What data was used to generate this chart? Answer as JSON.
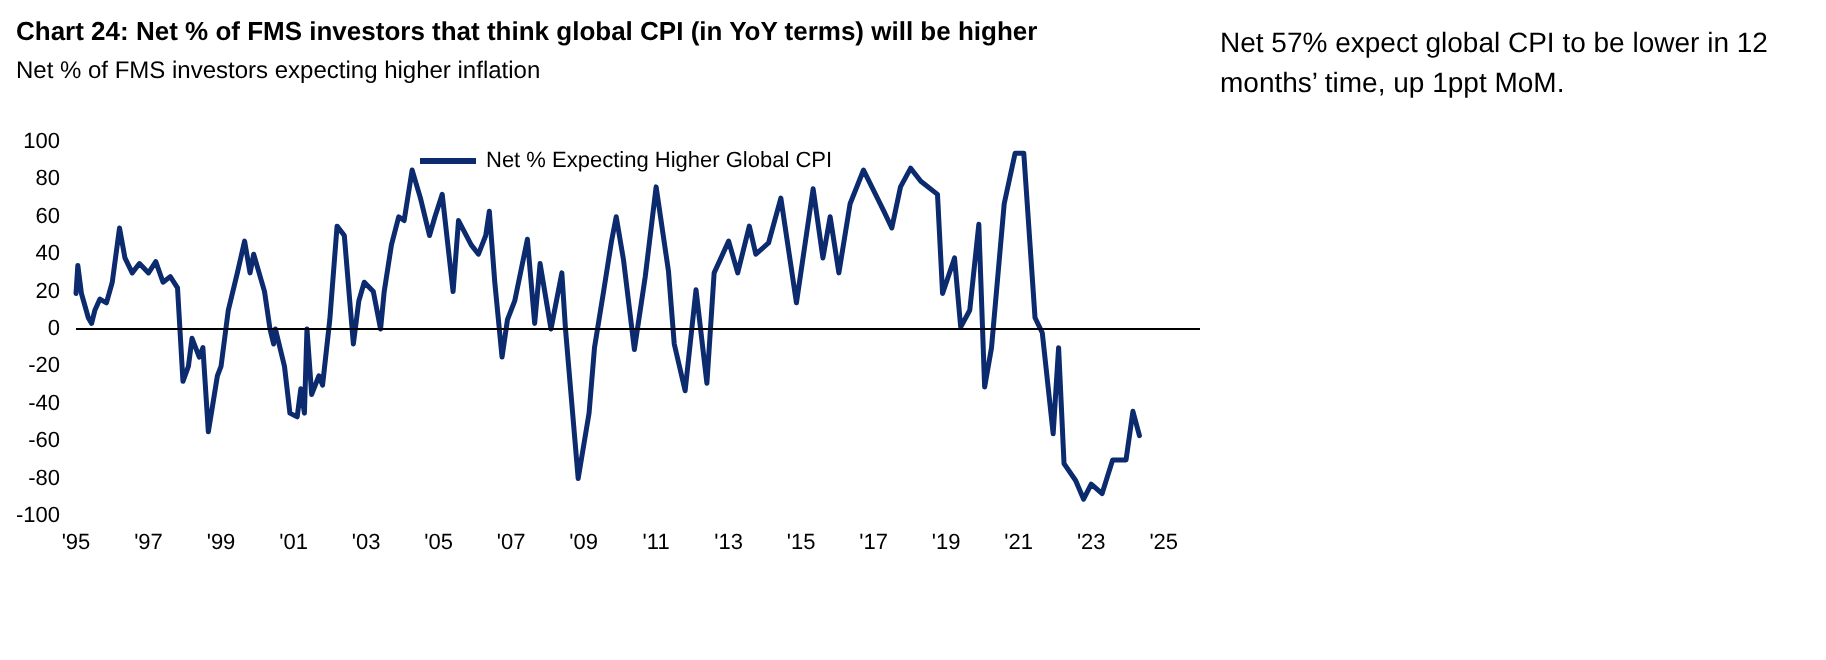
{
  "chart_data": {
    "type": "line",
    "title": "Chart 24: Net % of FMS investors that think global CPI (in YoY terms) will be higher",
    "subtitle": "Net % of FMS investors expecting higher inflation",
    "annotations": [
      "Net 57% expect global CPI to be lower in 12 months’ time, up 1ppt MoM."
    ],
    "x": [
      1995.0,
      1995.05,
      1995.15,
      1995.34,
      1995.43,
      1995.52,
      1995.66,
      1995.84,
      1996.0,
      1996.2,
      1996.35,
      1996.55,
      1996.75,
      1997.0,
      1997.2,
      1997.4,
      1997.6,
      1997.8,
      1997.95,
      1998.1,
      1998.2,
      1998.4,
      1998.5,
      1998.65,
      1998.9,
      1999.0,
      1999.2,
      1999.45,
      1999.65,
      1999.8,
      1999.9,
      2000.2,
      2000.35,
      2000.45,
      2000.5,
      2000.75,
      2000.9,
      2001.1,
      2001.2,
      2001.3,
      2001.37,
      2001.5,
      2001.7,
      2001.8,
      2002.0,
      2002.2,
      2002.4,
      2002.55,
      2002.65,
      2002.8,
      2002.95,
      2003.2,
      2003.4,
      2003.5,
      2003.7,
      2003.9,
      2004.05,
      2004.27,
      2004.5,
      2004.75,
      2004.9,
      2005.1,
      2005.4,
      2005.55,
      2005.9,
      2006.1,
      2006.3,
      2006.4,
      2006.55,
      2006.75,
      2006.9,
      2007.1,
      2007.45,
      2007.65,
      2007.8,
      2008.1,
      2008.4,
      2008.5,
      2008.85,
      2009.15,
      2009.3,
      2009.55,
      2009.77,
      2009.9,
      2010.1,
      2010.4,
      2010.7,
      2011.0,
      2011.34,
      2011.5,
      2011.8,
      2012.1,
      2012.4,
      2012.6,
      2013.0,
      2013.25,
      2013.57,
      2013.75,
      2014.1,
      2014.44,
      2014.87,
      2015.33,
      2015.6,
      2015.8,
      2016.04,
      2016.35,
      2016.72,
      2017.28,
      2017.5,
      2017.74,
      2018.02,
      2018.3,
      2018.76,
      2018.9,
      2019.23,
      2019.4,
      2019.65,
      2019.9,
      2020.06,
      2020.25,
      2020.6,
      2020.9,
      2021.14,
      2021.45,
      2021.65,
      2021.95,
      2022.1,
      2022.25,
      2022.57,
      2022.79,
      2023.0,
      2023.3,
      2023.59,
      2023.96,
      2024.15,
      2024.33
    ],
    "series": [
      {
        "name": "Net % Expecting Higher Global CPI",
        "color": "#0c2a6e",
        "values": [
          19,
          34,
          19,
          6,
          3,
          10,
          16,
          14,
          25,
          54,
          38,
          30,
          35,
          30,
          36,
          25,
          28,
          22,
          -28,
          -20,
          -5,
          -15,
          -10,
          -55,
          -25,
          -20,
          10,
          30,
          47,
          30,
          40,
          20,
          0,
          -8,
          0,
          -20,
          -45,
          -47,
          -32,
          -45,
          0,
          -35,
          -25,
          -30,
          5,
          55,
          50,
          15,
          -8,
          15,
          25,
          20,
          0,
          20,
          45,
          60,
          58,
          85,
          70,
          50,
          60,
          72,
          20,
          58,
          45,
          40,
          50,
          63,
          25,
          -15,
          5,
          15,
          48,
          3,
          35,
          0,
          30,
          0,
          -80,
          -45,
          -10,
          20,
          47,
          60,
          37,
          -11,
          28,
          76,
          31,
          -8,
          -33,
          21,
          -29,
          30,
          47,
          30,
          55,
          40,
          46,
          70,
          14,
          75,
          38,
          60,
          30,
          67,
          85,
          63,
          54,
          76,
          86,
          79,
          72,
          19,
          38,
          1,
          10,
          56,
          -31,
          -10,
          67,
          94,
          94,
          6,
          -2,
          -56,
          -10,
          -72,
          -81,
          -91,
          -83,
          -88,
          -70,
          -70,
          -44,
          -57
        ]
      }
    ],
    "xlim": [
      1995,
      2026
    ],
    "xticks": [
      {
        "value": 1995,
        "label": "'95"
      },
      {
        "value": 1997,
        "label": "'97"
      },
      {
        "value": 1999,
        "label": "'99"
      },
      {
        "value": 2001,
        "label": "'01"
      },
      {
        "value": 2003,
        "label": "'03"
      },
      {
        "value": 2005,
        "label": "'05"
      },
      {
        "value": 2007,
        "label": "'07"
      },
      {
        "value": 2009,
        "label": "'09"
      },
      {
        "value": 2011,
        "label": "'11"
      },
      {
        "value": 2013,
        "label": "'13"
      },
      {
        "value": 2015,
        "label": "'15"
      },
      {
        "value": 2017,
        "label": "'17"
      },
      {
        "value": 2019,
        "label": "'19"
      },
      {
        "value": 2021,
        "label": "'21"
      },
      {
        "value": 2023,
        "label": "'23"
      },
      {
        "value": 2025,
        "label": "'25"
      }
    ],
    "ylim": [
      -100,
      100
    ],
    "yticks": [
      -100,
      -80,
      -60,
      -40,
      -20,
      0,
      20,
      40,
      60,
      80,
      100
    ],
    "ref_lines": [
      {
        "axis": "y",
        "value": 0,
        "color": "#000000"
      }
    ],
    "legend": "top",
    "grid": false,
    "marker": "none",
    "line_style": "solid"
  }
}
